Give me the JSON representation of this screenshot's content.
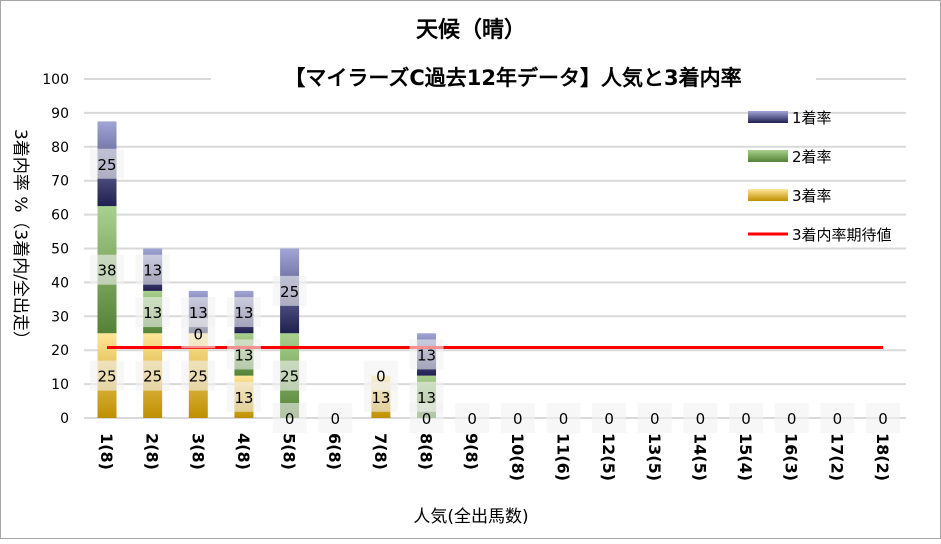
{
  "chart_data": {
    "type": "bar",
    "stacked": true,
    "title": "天候（晴）",
    "subtitle": "【マイラーズC過去12年データ】人気と3着内率",
    "xlabel": "人気(全出馬数)",
    "ylabel": "3着内率 %（3着内/全出走）",
    "ylim": [
      0,
      100
    ],
    "yticks": [
      0,
      10,
      20,
      30,
      40,
      50,
      60,
      70,
      80,
      90,
      100
    ],
    "grid": true,
    "legend_position": "right",
    "categories": [
      "1(8)",
      "2(8)",
      "3(8)",
      "4(8)",
      "5(8)",
      "6(8)",
      "7(8)",
      "8(8)",
      "9(8)",
      "10(8)",
      "11(6)",
      "12(5)",
      "13(5)",
      "14(5)",
      "15(4)",
      "16(3)",
      "17(2)",
      "18(2)"
    ],
    "series": [
      {
        "name": "3着率",
        "color_dark": "#bf8f00",
        "color_light": "#ffe699",
        "values": [
          25,
          25,
          25,
          12.5,
          0,
          0,
          12.5,
          0,
          0,
          0,
          0,
          0,
          0,
          0,
          0,
          0,
          0,
          0
        ],
        "labels": [
          "25",
          "25",
          "25",
          "13",
          "0",
          "0",
          "13",
          "0",
          "0",
          "0",
          "0",
          "0",
          "0",
          "0",
          "0",
          "0",
          "0",
          "0"
        ]
      },
      {
        "name": "2着率",
        "color_dark": "#548235",
        "color_light": "#a9d18e",
        "values": [
          37.5,
          12.5,
          0,
          12.5,
          25,
          0,
          0,
          12.5,
          0,
          0,
          0,
          0,
          0,
          0,
          0,
          0,
          0,
          0
        ],
        "labels": [
          "38",
          "13",
          "0",
          "13",
          "25",
          "",
          "0",
          "13",
          "",
          "",
          "",
          "",
          "",
          "",
          "",
          "",
          "",
          ""
        ]
      },
      {
        "name": "1着率",
        "color_dark": "#1f1f50",
        "color_light": "#a2a6d6",
        "values": [
          25,
          12.5,
          12.5,
          12.5,
          25,
          0,
          0,
          12.5,
          0,
          0,
          0,
          0,
          0,
          0,
          0,
          0,
          0,
          0
        ],
        "labels": [
          "25",
          "13",
          "13",
          "13",
          "25",
          "",
          "",
          "13",
          "",
          "",
          "",
          "",
          "",
          "",
          "",
          "",
          "",
          ""
        ]
      }
    ],
    "reference_line": {
      "name": "3着内率期待値",
      "value": 20.8,
      "color": "#ff0000"
    }
  }
}
